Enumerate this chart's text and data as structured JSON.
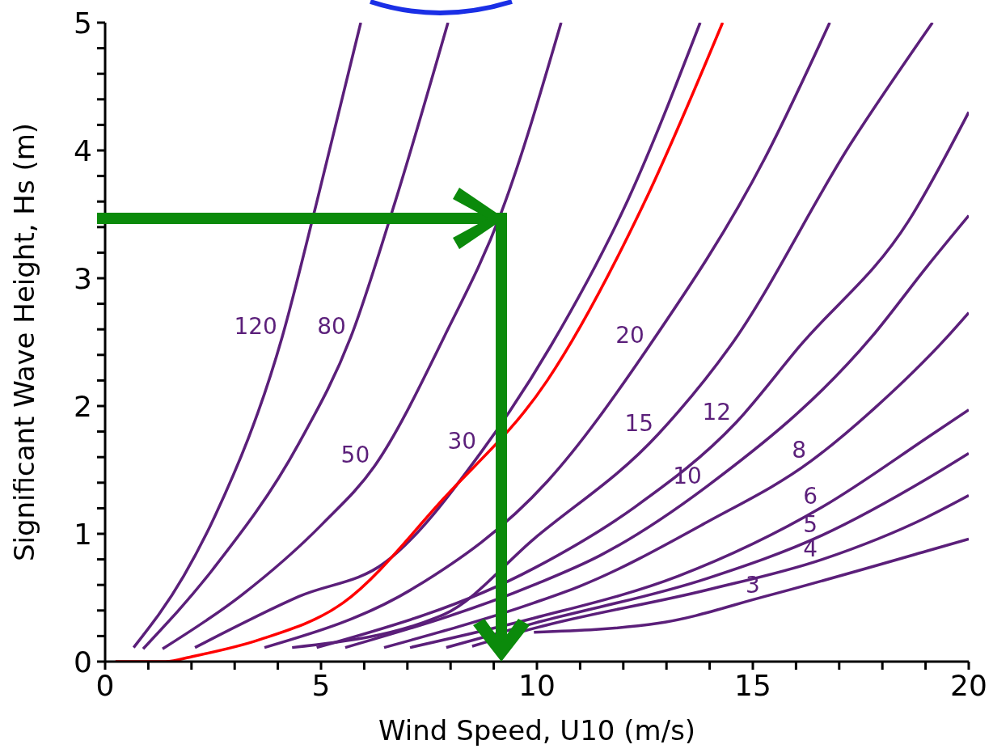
{
  "chart_data": {
    "type": "line",
    "xlabel": "Wind Speed,  U10 (m/s)",
    "ylabel": "Significant Wave Height,   Hs   (m)",
    "xlim": [
      0,
      20
    ],
    "ylim": [
      0,
      5
    ],
    "xticks": [
      0,
      {
        "value": 1,
        "label": null
      },
      {
        "value": 2,
        "label": null
      },
      {
        "value": 3,
        "label": null
      },
      {
        "value": 4,
        "label": null
      },
      5,
      {
        "value": 6,
        "label": null
      },
      {
        "value": 7,
        "label": null
      },
      {
        "value": 8,
        "label": null
      },
      {
        "value": 9,
        "label": null
      },
      10,
      {
        "value": 11,
        "label": null
      },
      {
        "value": 12,
        "label": null
      },
      {
        "value": 13,
        "label": null
      },
      {
        "value": 14,
        "label": null
      },
      15,
      {
        "value": 16,
        "label": null
      },
      {
        "value": 17,
        "label": null
      },
      {
        "value": 18,
        "label": null
      },
      {
        "value": 19,
        "label": null
      },
      20
    ],
    "yticks": [
      0,
      {
        "value": 0.2,
        "label": null
      },
      {
        "value": 0.4,
        "label": null
      },
      {
        "value": 0.6,
        "label": null
      },
      {
        "value": 0.8,
        "label": null
      },
      1,
      {
        "value": 1.2,
        "label": null
      },
      {
        "value": 1.4,
        "label": null
      },
      {
        "value": 1.6,
        "label": null
      },
      {
        "value": 1.8,
        "label": null
      },
      2,
      {
        "value": 2.2,
        "label": null
      },
      {
        "value": 2.4,
        "label": null
      },
      {
        "value": 2.6,
        "label": null
      },
      {
        "value": 2.8,
        "label": null
      },
      3,
      {
        "value": 3.2,
        "label": null
      },
      {
        "value": 3.4,
        "label": null
      },
      {
        "value": 3.6,
        "label": null
      },
      {
        "value": 3.8,
        "label": null
      },
      4,
      {
        "value": 4.2,
        "label": null
      },
      {
        "value": 4.4,
        "label": null
      },
      {
        "value": 4.6,
        "label": null
      },
      {
        "value": 4.8,
        "label": null
      },
      5
    ],
    "marker": "none",
    "line_style": "solid",
    "series": [
      {
        "name": "120",
        "color": "#5b1f7a",
        "x": [
          0.66,
          1.82,
          2.53,
          4.1,
          4.89,
          5.92
        ],
        "values": [
          0.11,
          0.67,
          1.13,
          2.54,
          3.58,
          5
        ]
      },
      {
        "name": "80",
        "color": "#5b1f7a",
        "x": [
          0.88,
          2.49,
          4.49,
          5.69,
          6.7,
          7.94
        ],
        "values": [
          0.1,
          0.72,
          1.71,
          2.54,
          3.58,
          5
        ]
      },
      {
        "name": "50",
        "color": "#5b1f7a",
        "x": [
          1.33,
          3.16,
          5.04,
          6.24,
          7.85,
          9.18,
          10.56
        ],
        "values": [
          0.1,
          0.52,
          1.08,
          1.53,
          2.54,
          3.52,
          5
        ]
      },
      {
        "name": "30",
        "color": "#5b1f7a",
        "x": [
          2.08,
          4.49,
          6.5,
          8.71,
          10.32,
          12.13,
          13.78
        ],
        "values": [
          0.11,
          0.51,
          0.78,
          1.64,
          2.47,
          3.63,
          5
        ]
      },
      {
        "color": "#ff0000",
        "x": [
          0.24,
          1.4,
          2.02,
          3.56,
          5.51,
          7.85,
          10.24,
          12.47,
          14.3
        ],
        "values": [
          0,
          0,
          0.04,
          0.17,
          0.46,
          1.28,
          2.2,
          3.58,
          5
        ]
      },
      {
        "name": "20",
        "color": "#5b1f7a",
        "x": [
          3.69,
          7.17,
          10.24,
          12.6,
          15.28,
          16.78
        ],
        "values": [
          0.11,
          0.58,
          1.41,
          2.47,
          3.94,
          5
        ]
      },
      {
        "name": "15",
        "color": "#5b1f7a",
        "x": [
          4.33,
          7.85,
          9.93,
          12.81,
          14.48,
          17.28,
          19.16
        ],
        "values": [
          0.11,
          0.37,
          0.96,
          1.78,
          2.47,
          4.06,
          5
        ]
      },
      {
        "name": "12",
        "color": "#5b1f7a",
        "x": [
          4.9,
          9.93,
          12.27,
          14.61,
          16.09,
          18.61,
          20
        ],
        "values": [
          0.11,
          0.73,
          1.21,
          1.87,
          2.47,
          3.45,
          4.3
        ]
      },
      {
        "name": "10",
        "color": "#5b1f7a",
        "x": [
          5.56,
          9.93,
          11.46,
          13.93,
          17.75,
          19.03,
          20
        ],
        "values": [
          0.11,
          0.6,
          0.83,
          1.37,
          2.54,
          3.09,
          3.49
        ]
      },
      {
        "name": "8",
        "color": "#5b1f7a",
        "x": [
          6.46,
          9.93,
          10.99,
          13.93,
          16.35,
          17.81,
          19.5,
          20
        ],
        "values": [
          0.11,
          0.46,
          0.59,
          1.09,
          1.57,
          1.98,
          2.54,
          2.73
        ]
      },
      {
        "name": "6",
        "color": "#5b1f7a",
        "x": [
          7.06,
          9.93,
          13.28,
          16.61,
          19.16,
          20
        ],
        "values": [
          0.11,
          0.34,
          0.67,
          1.21,
          1.78,
          1.97
        ]
      },
      {
        "name": "5",
        "color": "#5b1f7a",
        "x": [
          7.9,
          9.93,
          13.93,
          16.61,
          19.08,
          20
        ],
        "values": [
          0.11,
          0.3,
          0.65,
          0.99,
          1.44,
          1.63
        ]
      },
      {
        "name": "4",
        "color": "#5b1f7a",
        "x": [
          8.5,
          9.93,
          13.93,
          16.61,
          19.03,
          20
        ],
        "values": [
          0.12,
          0.26,
          0.56,
          0.8,
          1.13,
          1.3
        ]
      },
      {
        "name": "3",
        "color": "#5b1f7a",
        "x": [
          9.93,
          12.81,
          15.28,
          19.08,
          20
        ],
        "values": [
          0.23,
          0.3,
          0.51,
          0.87,
          0.96
        ]
      }
    ]
  }
}
